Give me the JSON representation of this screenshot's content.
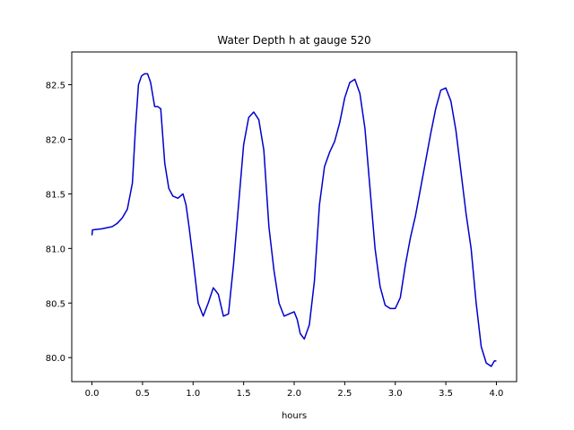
{
  "chart_data": {
    "type": "line",
    "title": "Water Depth h at gauge 520",
    "xlabel": "hours",
    "ylabel": "",
    "xlim": [
      -0.2,
      4.2
    ],
    "ylim": [
      79.78,
      82.8
    ],
    "xticks": [
      0.0,
      0.5,
      1.0,
      1.5,
      2.0,
      2.5,
      3.0,
      3.5,
      4.0
    ],
    "xtick_labels": [
      "0.0",
      "0.5",
      "1.0",
      "1.5",
      "2.0",
      "2.5",
      "3.0",
      "3.5",
      "4.0"
    ],
    "yticks": [
      80.0,
      80.5,
      81.0,
      81.5,
      82.0,
      82.5
    ],
    "ytick_labels": [
      "80.0",
      "80.5",
      "81.0",
      "81.5",
      "82.0",
      "82.5"
    ],
    "grid": false,
    "series": [
      {
        "color": "#0000cc",
        "x": [
          0.0,
          0.005,
          0.1,
          0.2,
          0.25,
          0.3,
          0.35,
          0.4,
          0.43,
          0.46,
          0.49,
          0.52,
          0.55,
          0.58,
          0.62,
          0.65,
          0.68,
          0.72,
          0.76,
          0.8,
          0.85,
          0.9,
          0.93,
          0.96,
          1.0,
          1.05,
          1.1,
          1.15,
          1.2,
          1.25,
          1.3,
          1.35,
          1.4,
          1.45,
          1.5,
          1.55,
          1.6,
          1.65,
          1.7,
          1.75,
          1.8,
          1.85,
          1.9,
          1.95,
          2.0,
          2.03,
          2.06,
          2.1,
          2.15,
          2.2,
          2.25,
          2.3,
          2.35,
          2.4,
          2.45,
          2.5,
          2.55,
          2.6,
          2.65,
          2.7,
          2.75,
          2.8,
          2.85,
          2.9,
          2.95,
          3.0,
          3.05,
          3.1,
          3.15,
          3.2,
          3.25,
          3.3,
          3.35,
          3.4,
          3.45,
          3.5,
          3.55,
          3.6,
          3.65,
          3.7,
          3.75,
          3.8,
          3.85,
          3.9,
          3.95,
          3.98,
          4.0
        ],
        "y": [
          81.12,
          81.17,
          81.18,
          81.2,
          81.23,
          81.28,
          81.36,
          81.6,
          82.1,
          82.5,
          82.58,
          82.6,
          82.6,
          82.52,
          82.3,
          82.3,
          82.28,
          81.78,
          81.55,
          81.48,
          81.46,
          81.5,
          81.4,
          81.2,
          80.9,
          80.5,
          80.38,
          80.5,
          80.64,
          80.58,
          80.38,
          80.4,
          80.85,
          81.4,
          81.95,
          82.2,
          82.25,
          82.18,
          81.9,
          81.2,
          80.8,
          80.5,
          80.38,
          80.4,
          80.42,
          80.35,
          80.22,
          80.17,
          80.3,
          80.7,
          81.4,
          81.75,
          81.88,
          81.98,
          82.15,
          82.38,
          82.52,
          82.55,
          82.42,
          82.1,
          81.55,
          81.0,
          80.65,
          80.48,
          80.45,
          80.45,
          80.55,
          80.85,
          81.1,
          81.3,
          81.55,
          81.8,
          82.05,
          82.28,
          82.45,
          82.47,
          82.35,
          82.08,
          81.7,
          81.32,
          81.0,
          80.5,
          80.1,
          79.95,
          79.92,
          79.97,
          79.97
        ]
      }
    ]
  }
}
